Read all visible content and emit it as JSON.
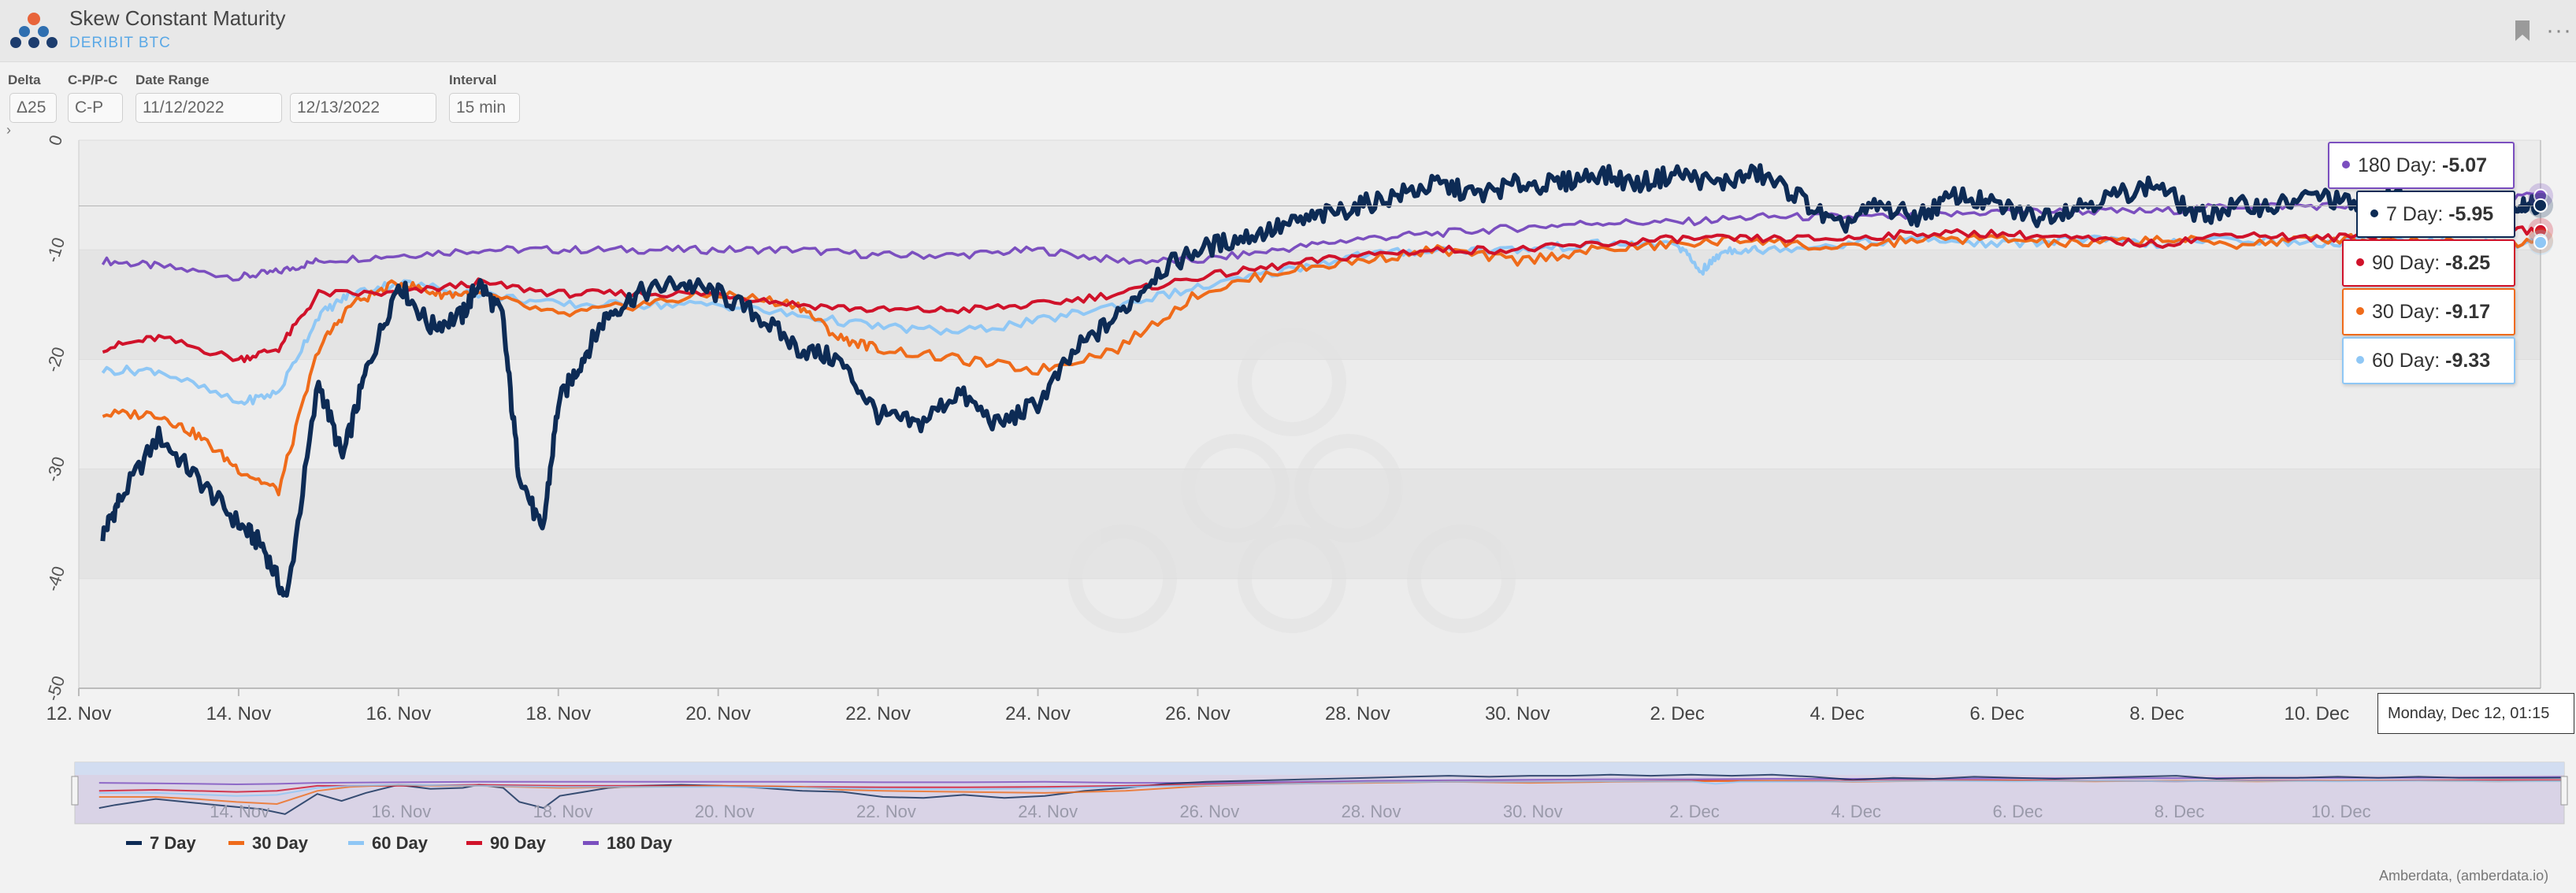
{
  "header": {
    "title": "Skew Constant Maturity",
    "subtitle": "DERIBIT BTC"
  },
  "controls": {
    "delta_label": "Delta",
    "delta_value": "Δ25",
    "cpc_label": "C-P/P-C",
    "cpc_value": "C-P",
    "range_label": "Date Range",
    "range_start": "11/12/2022",
    "range_end": "12/13/2022",
    "interval_label": "Interval",
    "interval_value": "15 min"
  },
  "credit": "Amberdata, (amberdata.io)",
  "crosshair_date": "Monday, Dec 12, 01:15",
  "chart_data": {
    "type": "line",
    "ylim": [
      -50,
      0
    ],
    "y_ticks": [
      0,
      -10,
      -20,
      -30,
      -40,
      -50
    ],
    "y_tick_labels": [
      "0",
      "-10",
      "-20",
      "-30",
      "-40",
      "-50"
    ],
    "x_ticks": [
      0,
      2,
      4,
      6,
      8,
      10,
      12,
      14,
      16,
      18,
      20,
      22,
      24,
      26,
      28
    ],
    "x_tick_labels": [
      "12. Nov",
      "14. Nov",
      "16. Nov",
      "18. Nov",
      "20. Nov",
      "22. Nov",
      "24. Nov",
      "26. Nov",
      "28. Nov",
      "30. Nov",
      "2. Dec",
      "4. Dec",
      "6. Dec",
      "8. Dec",
      "10. Dec"
    ],
    "nav_tick_labels": [
      "14. Nov",
      "16. Nov",
      "18. Nov",
      "20. Nov",
      "22. Nov",
      "24. Nov",
      "26. Nov",
      "28. Nov",
      "30. Nov",
      "2. Dec",
      "4. Dec",
      "6. Dec",
      "8. Dec",
      "10. Dec"
    ],
    "x_unit": "days since 12 Nov 2022",
    "series": [
      {
        "name": "180 Day",
        "color": "#7b4fbf",
        "label": "-5.07",
        "x": [
          0.3,
          1,
          2,
          2.5,
          3,
          4,
          5,
          6,
          7,
          8,
          9,
          10,
          11,
          12,
          13,
          14,
          15,
          16,
          17,
          18,
          19,
          20,
          21,
          22,
          23,
          24,
          25,
          26,
          27,
          28,
          29,
          30,
          30.8
        ],
        "y": [
          -11,
          -11.5,
          -12.5,
          -12,
          -11,
          -10.5,
          -10,
          -10,
          -10,
          -10,
          -10,
          -10.5,
          -10.5,
          -10,
          -11,
          -11,
          -10,
          -9,
          -8.5,
          -8,
          -7.5,
          -7.5,
          -7,
          -7,
          -7,
          -6.5,
          -6.5,
          -6.5,
          -6,
          -6,
          -6,
          -5.5,
          -5.07
        ]
      },
      {
        "name": "7 Day",
        "color": "#0d2b55",
        "label": "-5.95",
        "x": [
          0.3,
          0.5,
          1,
          1.5,
          2,
          2.3,
          2.6,
          3,
          3.3,
          3.6,
          4,
          4.4,
          4.8,
          5,
          5.3,
          5.5,
          5.8,
          6,
          6.3,
          6.6,
          7,
          7.5,
          8,
          8.5,
          9,
          9.5,
          10,
          10.5,
          11,
          11.5,
          12,
          12.5,
          13,
          13.5,
          14,
          14.5,
          15,
          15.5,
          16,
          16.5,
          17,
          17.5,
          18,
          18.5,
          19,
          19.5,
          20,
          20.5,
          21,
          21.5,
          22,
          22.5,
          23,
          23.5,
          24,
          24.5,
          25,
          25.5,
          26,
          26.5,
          27,
          27.5,
          28,
          28.5,
          29,
          29.5,
          30,
          30.5,
          30.8
        ],
        "y": [
          -36,
          -33,
          -27,
          -31,
          -35,
          -37,
          -42,
          -22,
          -29,
          -21,
          -13,
          -17,
          -16,
          -13,
          -16,
          -30,
          -36,
          -24,
          -20,
          -16,
          -14,
          -13,
          -14,
          -16,
          -19,
          -20,
          -25,
          -26,
          -23,
          -26,
          -24,
          -19,
          -16,
          -12,
          -10,
          -9,
          -8,
          -7,
          -6,
          -5,
          -4,
          -5,
          -4,
          -4,
          -3,
          -4,
          -3,
          -4,
          -3,
          -5,
          -8,
          -6,
          -7,
          -5,
          -6,
          -7,
          -6,
          -5,
          -4,
          -7,
          -6,
          -6,
          -5,
          -6,
          -5,
          -6,
          -6,
          -6,
          -5.95
        ]
      },
      {
        "name": "90 Day",
        "color": "#d0122a",
        "label": "-8.25",
        "x": [
          0.3,
          1,
          2,
          2.5,
          3,
          4,
          5,
          6,
          7,
          8,
          9,
          10,
          11,
          12,
          13,
          14,
          15,
          16,
          17,
          18,
          19,
          20,
          21,
          22,
          23,
          24,
          25,
          26,
          27,
          28,
          29,
          30,
          30.8
        ],
        "y": [
          -19,
          -18,
          -20,
          -19,
          -14,
          -14,
          -13,
          -14,
          -14,
          -14,
          -15,
          -15.5,
          -15.5,
          -15,
          -14,
          -12.5,
          -11.5,
          -10.5,
          -10,
          -10,
          -9.5,
          -9,
          -9,
          -9,
          -8.5,
          -8.5,
          -9,
          -9.5,
          -8.5,
          -9,
          -8.5,
          -8.3,
          -8.25
        ]
      },
      {
        "name": "30 Day",
        "color": "#ef6b1a",
        "label": "-9.17",
        "x": [
          0.3,
          1,
          1.5,
          2,
          2.5,
          3,
          3.4,
          4,
          4.5,
          5,
          6,
          7,
          8,
          9,
          9.5,
          10,
          11,
          12,
          13,
          14,
          15,
          16,
          17,
          18,
          19,
          20,
          21,
          22,
          23,
          24,
          25,
          26,
          27,
          28,
          29,
          30,
          30.8
        ],
        "y": [
          -25,
          -25,
          -27,
          -30,
          -32,
          -19,
          -15,
          -13,
          -14,
          -14,
          -16,
          -15,
          -14,
          -15,
          -18,
          -19,
          -20,
          -21,
          -19,
          -14,
          -12,
          -11,
          -10,
          -11,
          -10,
          -9.5,
          -9,
          -10,
          -9,
          -9,
          -9.5,
          -9,
          -9.5,
          -9,
          -9,
          -9.5,
          -9.17
        ]
      },
      {
        "name": "60 Day",
        "color": "#8fc7f5",
        "label": "-9.33",
        "x": [
          0.3,
          1,
          2,
          2.5,
          3,
          3.4,
          4,
          5,
          6,
          7,
          8,
          9,
          10,
          11,
          12,
          13,
          14,
          15,
          16,
          17,
          18,
          19,
          20,
          20.3,
          20.6,
          21,
          22,
          23,
          24,
          25,
          26,
          27,
          28,
          29,
          30,
          30.8
        ],
        "y": [
          -21,
          -21,
          -24,
          -23,
          -16,
          -14,
          -13,
          -14,
          -15,
          -15,
          -15,
          -16,
          -17,
          -17.5,
          -16.5,
          -15,
          -13.5,
          -12,
          -10.5,
          -10,
          -10,
          -9.5,
          -9.5,
          -12,
          -10,
          -10,
          -9.5,
          -9,
          -9.5,
          -9,
          -9.5,
          -9,
          -9.5,
          -9,
          -9.5,
          -9.33
        ]
      }
    ]
  }
}
